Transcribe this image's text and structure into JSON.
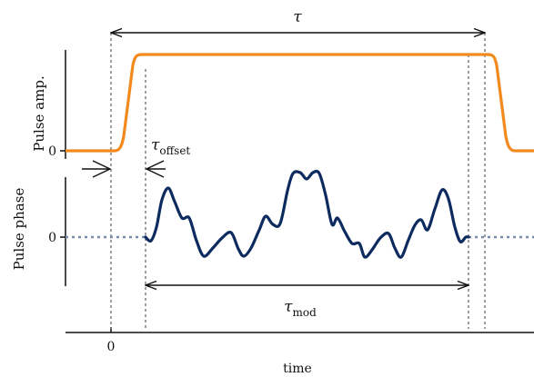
{
  "axes": {
    "top_ylabel": "Pulse amp.",
    "bottom_ylabel": "Pulse phase",
    "top_zero_tick": "0",
    "bottom_zero_tick": "0",
    "x_zero_tick": "0",
    "xlabel": "time"
  },
  "annotations": {
    "tau": {
      "symbol": "τ",
      "sub": ""
    },
    "tau_offset": {
      "symbol": "τ",
      "sub": "offset"
    },
    "tau_mod": {
      "symbol": "τ",
      "sub": "mod"
    }
  },
  "colors": {
    "amplitude": "#f28a1d",
    "phase": "#0d2b5e",
    "phase_baseline": "#7a8cae",
    "guides": "#6b6b6b",
    "axes": "#111111"
  }
}
